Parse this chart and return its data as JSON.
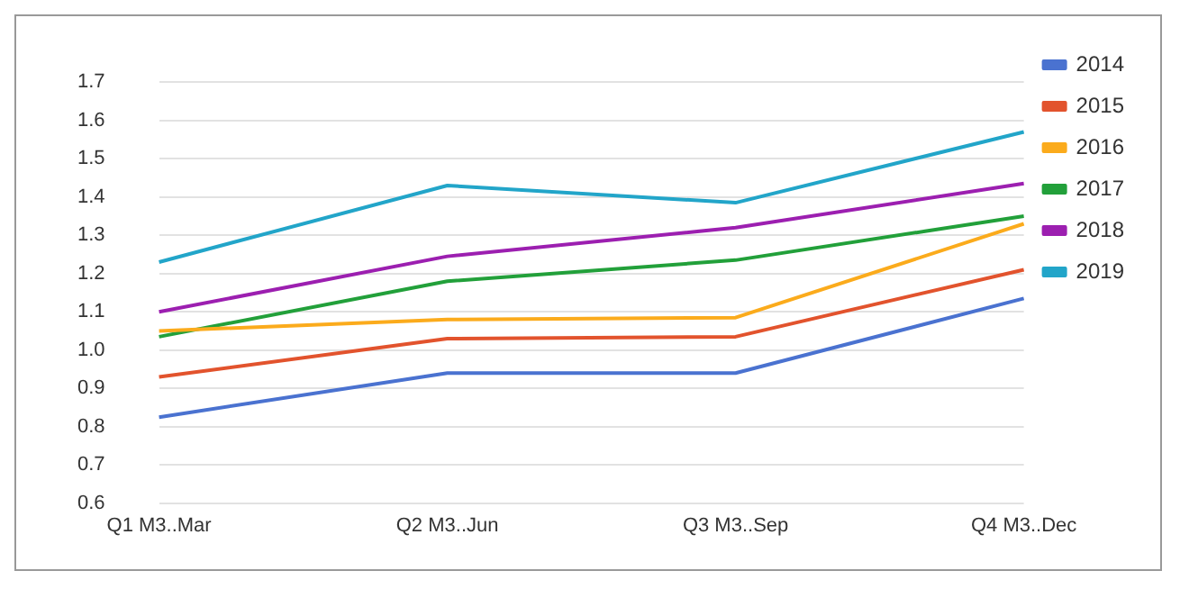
{
  "chart_data": {
    "type": "line",
    "categories": [
      "Q1 M3..Mar",
      "Q2 M3..Jun",
      "Q3 M3..Sep",
      "Q4 M3..Dec"
    ],
    "series": [
      {
        "name": "2014",
        "color": "#4a72d0",
        "values": [
          0.825,
          0.94,
          0.94,
          1.135
        ]
      },
      {
        "name": "2015",
        "color": "#e2532d",
        "values": [
          0.93,
          1.03,
          1.035,
          1.21
        ]
      },
      {
        "name": "2016",
        "color": "#fbab1c",
        "values": [
          1.05,
          1.08,
          1.085,
          1.33
        ]
      },
      {
        "name": "2017",
        "color": "#22a03a",
        "values": [
          1.035,
          1.18,
          1.235,
          1.35
        ]
      },
      {
        "name": "2018",
        "color": "#9c1fb0",
        "values": [
          1.1,
          1.245,
          1.32,
          1.435
        ]
      },
      {
        "name": "2019",
        "color": "#22a5c9",
        "values": [
          1.23,
          1.43,
          1.385,
          1.57
        ]
      }
    ],
    "ylim": [
      0.6,
      1.7
    ],
    "yticks": [
      {
        "value": 0.6,
        "label": "0.6"
      },
      {
        "value": 0.7,
        "label": "0.7"
      },
      {
        "value": 0.8,
        "label": "0.8"
      },
      {
        "value": 0.9,
        "label": "0.9"
      },
      {
        "value": 1.0,
        "label": "1.0"
      },
      {
        "value": 1.1,
        "label": "1.1"
      },
      {
        "value": 1.2,
        "label": "1.2"
      },
      {
        "value": 1.3,
        "label": "1.3"
      },
      {
        "value": 1.4,
        "label": "1.4"
      },
      {
        "value": 1.5,
        "label": "1.5"
      },
      {
        "value": 1.6,
        "label": "1.6"
      },
      {
        "value": 1.7,
        "label": "1.7"
      }
    ],
    "grid": "y",
    "legend": "top right",
    "marker": "none",
    "line_style": "solid"
  }
}
